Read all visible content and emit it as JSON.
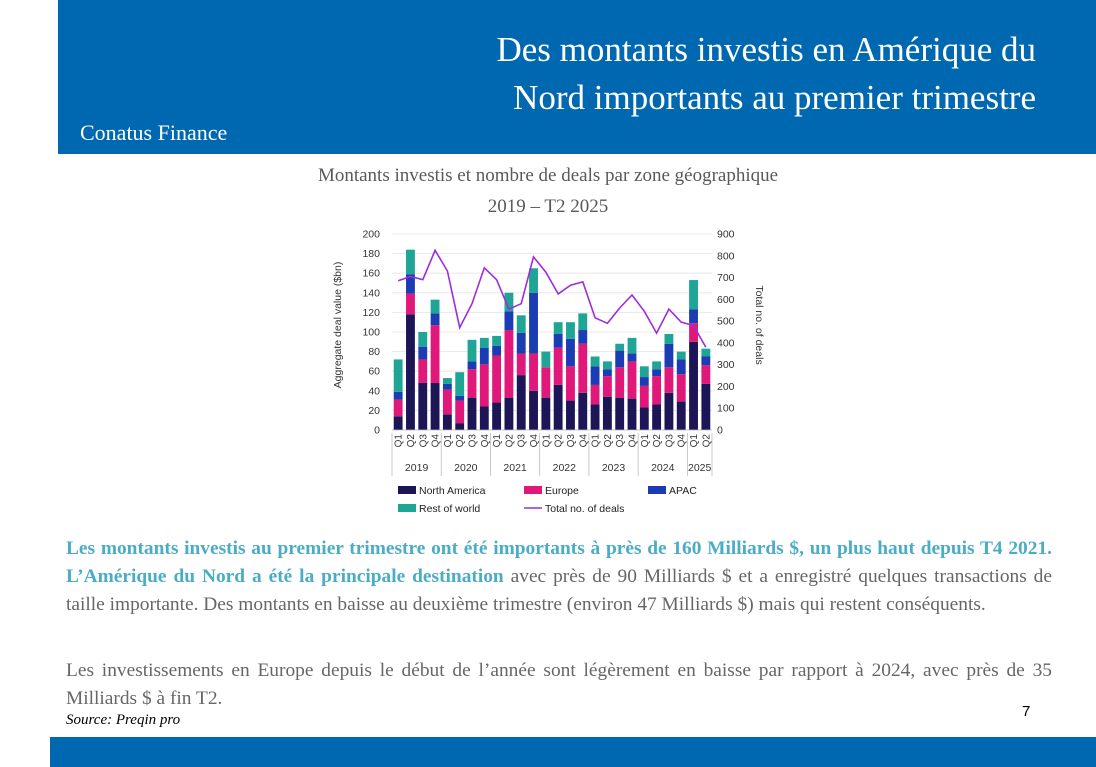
{
  "slide": {
    "title_line1": "Des montants investis en Amérique du",
    "title_line2": "Nord importants au premier trimestre",
    "company": "Conatus Finance",
    "chart_title_line1": "Montants investis et nombre de deals par zone géographique",
    "chart_title_line2": "2019 – T2 2025",
    "para1_highlight": "Les montants investis au premier trimestre ont été importants à près de 160 Milliards $, un plus haut depuis T4 2021. L’Amérique du Nord a été la principale destination",
    "para1_rest": " avec près de 90 Milliards $ et a enregistré quelques transactions de taille importante. Des montants en baisse au deuxième trimestre (environ 47 Milliards $) mais qui restent conséquents.",
    "para2": "Les investissements en Europe depuis le début de l’année sont légèrement en baisse par rapport à 2024, avec près de 35 Milliards $ à fin T2.",
    "source": "Source: Preqin pro",
    "page_number": "7"
  },
  "colors": {
    "header": "#0068b0",
    "highlight": "#4bacc6",
    "north_america": "#1c1656",
    "europe": "#e0187a",
    "apac": "#1b3cb3",
    "rest_of_world": "#1ea596",
    "deals_line": "#9b2fd9"
  },
  "chart_data": {
    "type": "bar",
    "stacked": true,
    "categories": [
      "Q1",
      "Q2",
      "Q3",
      "Q4",
      "Q1",
      "Q2",
      "Q3",
      "Q4",
      "Q1",
      "Q2",
      "Q3",
      "Q4",
      "Q1",
      "Q2",
      "Q3",
      "Q4",
      "Q1",
      "Q2",
      "Q3",
      "Q4",
      "Q1",
      "Q2",
      "Q3",
      "Q4",
      "Q1",
      "Q2"
    ],
    "years": [
      {
        "label": "2019",
        "count": 4
      },
      {
        "label": "2020",
        "count": 4
      },
      {
        "label": "2021",
        "count": 4
      },
      {
        "label": "2022",
        "count": 4
      },
      {
        "label": "2023",
        "count": 4
      },
      {
        "label": "2024",
        "count": 4
      },
      {
        "label": "2025",
        "count": 2
      }
    ],
    "series": [
      {
        "name": "North America",
        "values": [
          14,
          118,
          48,
          48,
          16,
          7,
          33,
          24,
          28,
          33,
          56,
          40,
          33,
          46,
          30,
          38,
          26,
          34,
          33,
          32,
          23,
          26,
          38,
          29,
          90,
          47
        ]
      },
      {
        "name": "Europe",
        "values": [
          17,
          21,
          24,
          59,
          25,
          23,
          29,
          43,
          48,
          69,
          22,
          38,
          31,
          38,
          35,
          50,
          20,
          21,
          31,
          38,
          22,
          29,
          26,
          28,
          19,
          19
        ]
      },
      {
        "name": "APAC",
        "values": [
          8,
          20,
          13,
          12,
          6,
          5,
          8,
          17,
          10,
          19,
          21,
          62,
          0,
          14,
          28,
          14,
          19,
          7,
          17,
          8,
          9,
          7,
          24,
          15,
          14,
          9
        ]
      },
      {
        "name": "Rest of world",
        "values": [
          33,
          25,
          15,
          14,
          6,
          24,
          22,
          10,
          10,
          19,
          18,
          25,
          16,
          12,
          17,
          17,
          10,
          8,
          7,
          16,
          11,
          8,
          10,
          8,
          30,
          8
        ]
      }
    ],
    "line_series": {
      "name": "Total no. of deals",
      "values": [
        685,
        705,
        690,
        825,
        730,
        470,
        580,
        745,
        690,
        555,
        580,
        795,
        725,
        625,
        665,
        680,
        515,
        490,
        560,
        620,
        545,
        445,
        555,
        495,
        480,
        380
      ]
    },
    "ylabel": "Aggregate deal value ($bn)",
    "ylabel_right": "Total no. of deals",
    "ylim": [
      0,
      200
    ],
    "yticks": [
      "200",
      "180",
      "160",
      "140",
      "120",
      "100",
      "80",
      "60",
      "40",
      "20",
      "0"
    ],
    "ylim_right": [
      0,
      900
    ],
    "yticks_right": [
      "900",
      "800",
      "700",
      "600",
      "500",
      "400",
      "300",
      "200",
      "100",
      "0"
    ],
    "legend": [
      "North America",
      "Europe",
      "APAC",
      "Rest of world",
      "Total no. of deals"
    ],
    "legend_position": "bottom"
  }
}
